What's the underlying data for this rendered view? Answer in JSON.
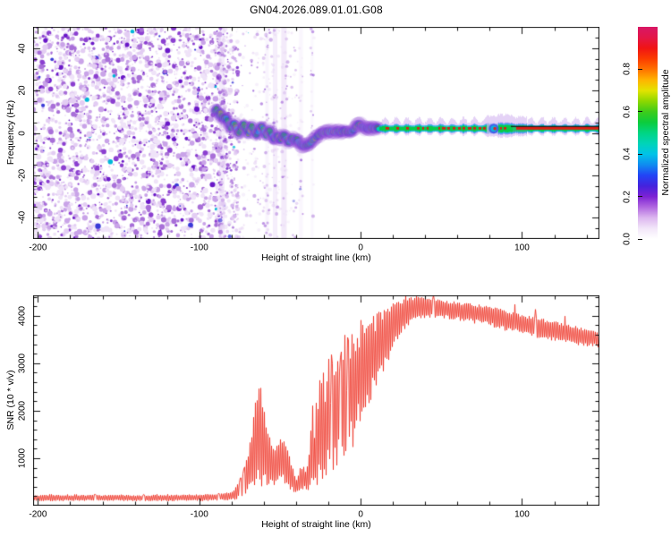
{
  "title": "GN04.2026.089.01.01.G08",
  "chart_data": [
    {
      "type": "heatmap",
      "name": "doppler-spectrogram",
      "xlabel": "Height of straight line (km)",
      "ylabel": "Frequency (Hz)",
      "xlim": [
        -203,
        148
      ],
      "ylim": [
        -50,
        50
      ],
      "x_major_ticks": [
        -200,
        -100,
        0,
        100
      ],
      "x_minor_step": 20,
      "y_major_ticks": [
        -40,
        -20,
        0,
        20,
        40
      ],
      "y_minor_step": 5,
      "grid": false,
      "colorbar": {
        "label": "Normalized spectral amplitude",
        "ticks": [
          0.0,
          0.2,
          0.4,
          0.6,
          0.8
        ],
        "range": [
          0,
          1
        ],
        "stops": [
          [
            0,
            "#ffffff"
          ],
          [
            0.05,
            "#f2e6f9"
          ],
          [
            0.1,
            "#dcb6ef"
          ],
          [
            0.15,
            "#b168e0"
          ],
          [
            0.2,
            "#7d22d4"
          ],
          [
            0.25,
            "#4422dd"
          ],
          [
            0.3,
            "#2244f5"
          ],
          [
            0.35,
            "#0f8cf0"
          ],
          [
            0.4,
            "#00c3e8"
          ],
          [
            0.45,
            "#00d4b8"
          ],
          [
            0.5,
            "#00d583"
          ],
          [
            0.55,
            "#0ccc3c"
          ],
          [
            0.6,
            "#3ecc1a"
          ],
          [
            0.65,
            "#8ed800"
          ],
          [
            0.7,
            "#e3e300"
          ],
          [
            0.75,
            "#ffb300"
          ],
          [
            0.8,
            "#ff7100"
          ],
          [
            0.85,
            "#fb3c00"
          ],
          [
            0.9,
            "#f01414"
          ],
          [
            0.95,
            "#e31648"
          ],
          [
            1,
            "#d81765"
          ]
        ]
      },
      "noise_region": {
        "x_start_km": -203,
        "x_end_km": -86,
        "fade_end_km": -38
      },
      "vertical_streaks_km": [
        -86,
        -58,
        -53,
        -47.5,
        -37,
        -30
      ],
      "signal_trace": [
        [
          -90.5,
          10.5
        ],
        [
          -89.5,
          11.5
        ],
        [
          -88.5,
          9.6
        ],
        [
          -87.5,
          8.2
        ],
        [
          -86.5,
          9.2
        ],
        [
          -85.5,
          7.4
        ],
        [
          -84.5,
          6.2
        ],
        [
          -83.5,
          7.4
        ],
        [
          -82.5,
          5.4
        ],
        [
          -81.5,
          3.8
        ],
        [
          -80.5,
          2.2
        ],
        [
          -79.5,
          3.4
        ],
        [
          -78.5,
          4.8
        ],
        [
          -77.5,
          3.2
        ],
        [
          -76.5,
          1.4
        ],
        [
          -75.5,
          -0.4
        ],
        [
          -74.5,
          1.2
        ],
        [
          -73.5,
          2.8
        ],
        [
          -72.5,
          4.4
        ],
        [
          -71.5,
          3
        ],
        [
          -70.5,
          1.2
        ],
        [
          -69.5,
          -0.4
        ],
        [
          -68.5,
          1.6
        ],
        [
          -67.5,
          3.6
        ],
        [
          -66.5,
          2
        ],
        [
          -65.5,
          0.2
        ],
        [
          -64.5,
          -1.4
        ],
        [
          -63.5,
          0.4
        ],
        [
          -62.5,
          2
        ],
        [
          -61.5,
          3.4
        ],
        [
          -60.5,
          1.8
        ],
        [
          -59.5,
          0.2
        ],
        [
          -58.5,
          -1.4
        ],
        [
          -57.5,
          0
        ],
        [
          -56.5,
          1.2
        ],
        [
          -55.5,
          -0.4
        ],
        [
          -54.5,
          -2
        ],
        [
          -53.5,
          -3.6
        ],
        [
          -52.5,
          -2.2
        ],
        [
          -51.5,
          -0.8
        ],
        [
          -50.5,
          -2
        ],
        [
          -49.5,
          -3.4
        ],
        [
          -48.5,
          -2
        ],
        [
          -47.5,
          -0.6
        ],
        [
          -46.5,
          -1.8
        ],
        [
          -45.5,
          -3.2
        ],
        [
          -44.5,
          -4.6
        ],
        [
          -43.5,
          -3.4
        ],
        [
          -42.5,
          -2.2
        ],
        [
          -41.5,
          -3
        ],
        [
          -40.5,
          -4.2
        ],
        [
          -39.5,
          -3
        ],
        [
          -38.5,
          -4
        ],
        [
          -37.5,
          -5
        ],
        [
          -36.5,
          -5.6
        ],
        [
          -35.5,
          -6
        ],
        [
          -34.5,
          -6.2
        ],
        [
          -33.5,
          -5.8
        ],
        [
          -32.5,
          -5.3
        ],
        [
          -31.5,
          -4.7
        ],
        [
          -30.5,
          -4.1
        ],
        [
          -29.5,
          -3.3
        ],
        [
          -28.5,
          -2.5
        ],
        [
          -27.5,
          -1.8
        ],
        [
          -26.5,
          -1.2
        ],
        [
          -25.5,
          -0.7
        ],
        [
          -24.5,
          -0.2
        ],
        [
          -23.5,
          0.2
        ],
        [
          -22.5,
          0.5
        ],
        [
          -21.5,
          0.6
        ],
        [
          -20.5,
          0.5
        ],
        [
          -19.5,
          0.6
        ],
        [
          -18.5,
          0.5
        ],
        [
          -17.5,
          0.6
        ],
        [
          -16.5,
          0.7
        ],
        [
          -15.5,
          0.6
        ],
        [
          -14.5,
          0.6
        ],
        [
          -13.5,
          0.7
        ],
        [
          -12.5,
          0.6
        ],
        [
          -11.5,
          0.7
        ],
        [
          -10.5,
          0.6
        ],
        [
          -9.5,
          0.7
        ],
        [
          -8.5,
          0.6
        ],
        [
          -7.5,
          0.7
        ],
        [
          -6.5,
          0.6
        ],
        [
          -5.5,
          0.8
        ],
        [
          -4.5,
          1.2
        ],
        [
          -3.5,
          2.2
        ],
        [
          -2.5,
          3.4
        ],
        [
          -1.5,
          4
        ],
        [
          -0.5,
          3.8
        ],
        [
          0.5,
          3.2
        ],
        [
          1.5,
          2.6
        ],
        [
          2.5,
          2.3
        ],
        [
          3.5,
          2.6
        ],
        [
          4.5,
          2.2
        ],
        [
          5.5,
          2.5
        ],
        [
          6.5,
          2.1
        ],
        [
          7.5,
          2.4
        ],
        [
          8.5,
          2.1
        ],
        [
          9.5,
          2.3
        ],
        [
          10.5,
          2.1
        ],
        [
          11.5,
          2.1
        ]
      ],
      "trace_red_segments": [
        [
          -63.5,
          -61.5
        ],
        [
          -50.5,
          -49
        ],
        [
          -17.5,
          -13
        ],
        [
          -11,
          -5.5
        ],
        [
          -1.5,
          11
        ]
      ],
      "band": {
        "x_range": [
          11.5,
          148
        ],
        "hz": 2.05,
        "red_segments": [
          [
            -1.5,
            11
          ],
          [
            14,
            18
          ],
          [
            21,
            24
          ],
          [
            27,
            30
          ],
          [
            34,
            42
          ],
          [
            48,
            78
          ],
          [
            82,
            84
          ],
          [
            86,
            90
          ],
          [
            96,
            148
          ]
        ],
        "pinch_km": [
          78,
          85
        ],
        "bulge_km": [
          85,
          94
        ],
        "swell_km": [
          94,
          103
        ]
      },
      "black_line": {
        "x_range": [
          93,
          148
        ],
        "hz": 3.3
      }
    },
    {
      "type": "line",
      "name": "snr-profile",
      "xlabel": "Height of straight line (km)",
      "ylabel": "SNR (10 * v/v)",
      "xlim": [
        -203,
        148
      ],
      "ylim": [
        0,
        4430
      ],
      "x_major_ticks": [
        -200,
        -100,
        0,
        100
      ],
      "x_minor_step": 20,
      "y_major_ticks": [
        1000,
        2000,
        3000,
        4000
      ],
      "y_minor_step": 200,
      "grid": false,
      "line_color": "#ee3326",
      "envelope_km_lo_hi": [
        [
          -200,
          95,
          225
        ],
        [
          -190,
          95,
          230
        ],
        [
          -180,
          95,
          225
        ],
        [
          -170,
          100,
          230
        ],
        [
          -160,
          95,
          225
        ],
        [
          -150,
          100,
          235
        ],
        [
          -140,
          95,
          225
        ],
        [
          -130,
          100,
          230
        ],
        [
          -120,
          95,
          230
        ],
        [
          -110,
          100,
          235
        ],
        [
          -100,
          100,
          240
        ],
        [
          -95,
          100,
          245
        ],
        [
          -90,
          105,
          250
        ],
        [
          -85,
          110,
          260
        ],
        [
          -82,
          115,
          280
        ],
        [
          -79,
          120,
          330
        ],
        [
          -76,
          140,
          480
        ],
        [
          -73,
          170,
          700
        ],
        [
          -70,
          220,
          1100
        ],
        [
          -68,
          260,
          1600
        ],
        [
          -66,
          300,
          2100
        ],
        [
          -64,
          330,
          2450
        ],
        [
          -62,
          330,
          2500
        ],
        [
          -60,
          310,
          2150
        ],
        [
          -58,
          330,
          1750
        ],
        [
          -56,
          380,
          1450
        ],
        [
          -54,
          420,
          1250
        ],
        [
          -52,
          460,
          1400
        ],
        [
          -50,
          500,
          1500
        ],
        [
          -48,
          480,
          1400
        ],
        [
          -46,
          420,
          1250
        ],
        [
          -44,
          340,
          1000
        ],
        [
          -42,
          280,
          720
        ],
        [
          -40,
          255,
          540
        ],
        [
          -38,
          280,
          780
        ],
        [
          -36,
          320,
          900
        ],
        [
          -34,
          300,
          740
        ],
        [
          -32,
          340,
          1250
        ],
        [
          -30,
          420,
          2350
        ],
        [
          -29,
          480,
          1500
        ],
        [
          -28,
          430,
          2550
        ],
        [
          -27,
          400,
          1800
        ],
        [
          -26,
          480,
          2750
        ],
        [
          -25,
          560,
          3300
        ],
        [
          -24,
          480,
          2050
        ],
        [
          -23,
          640,
          3400
        ],
        [
          -22,
          560,
          2250
        ],
        [
          -21,
          720,
          3050
        ],
        [
          -20,
          640,
          3500
        ],
        [
          -19,
          560,
          2050
        ],
        [
          -18,
          720,
          3600
        ],
        [
          -17,
          640,
          2450
        ],
        [
          -16,
          820,
          3700
        ],
        [
          -15,
          740,
          2650
        ],
        [
          -14,
          900,
          3800
        ],
        [
          -13,
          820,
          2850
        ],
        [
          -12,
          1000,
          3650
        ],
        [
          -11,
          900,
          3050
        ],
        [
          -10,
          1100,
          3900
        ],
        [
          -9,
          760,
          2650
        ],
        [
          -8,
          1250,
          3850
        ],
        [
          -7,
          950,
          3050
        ],
        [
          -6,
          1450,
          3900
        ],
        [
          -5,
          1150,
          3250
        ],
        [
          -4,
          1650,
          3950
        ],
        [
          -3,
          1350,
          3450
        ],
        [
          -2,
          1850,
          3900
        ],
        [
          -1,
          1550,
          3550
        ],
        [
          0,
          2050,
          3980
        ],
        [
          1,
          1750,
          3650
        ],
        [
          2,
          1900,
          3800
        ],
        [
          3,
          2100,
          3950
        ],
        [
          4,
          2250,
          4050
        ],
        [
          5,
          1950,
          3850
        ],
        [
          6,
          2100,
          3900
        ],
        [
          7,
          2350,
          4050
        ],
        [
          8,
          2500,
          4100
        ],
        [
          9,
          2250,
          3950
        ],
        [
          10,
          2400,
          4050
        ],
        [
          11,
          2650,
          4150
        ],
        [
          12,
          2800,
          4180
        ],
        [
          13,
          2600,
          4050
        ],
        [
          14,
          2750,
          4100
        ],
        [
          15,
          2950,
          4200
        ],
        [
          16,
          3050,
          4220
        ],
        [
          17,
          2900,
          4100
        ],
        [
          18,
          3150,
          4250
        ],
        [
          19,
          3250,
          4280
        ],
        [
          20,
          3300,
          4280
        ],
        [
          22,
          3450,
          4300
        ],
        [
          25,
          3600,
          4330
        ],
        [
          28,
          3750,
          4380
        ],
        [
          30,
          3820,
          4400
        ],
        [
          35,
          3880,
          4420
        ],
        [
          40,
          3920,
          4420
        ],
        [
          45,
          3950,
          4360
        ],
        [
          50,
          3940,
          4340
        ],
        [
          55,
          3920,
          4320
        ],
        [
          60,
          3900,
          4300
        ],
        [
          65,
          3870,
          4280
        ],
        [
          70,
          3840,
          4260
        ],
        [
          75,
          3810,
          4230
        ],
        [
          80,
          3770,
          4200
        ],
        [
          85,
          3730,
          4160
        ],
        [
          90,
          3680,
          4120
        ],
        [
          95,
          3640,
          4080
        ],
        [
          100,
          3610,
          4040
        ],
        [
          105,
          3570,
          4000
        ],
        [
          110,
          3530,
          3960
        ],
        [
          115,
          3500,
          3920
        ],
        [
          120,
          3470,
          3890
        ],
        [
          125,
          3440,
          3850
        ],
        [
          130,
          3410,
          3810
        ],
        [
          135,
          3380,
          3770
        ],
        [
          140,
          3360,
          3730
        ],
        [
          145,
          3340,
          3690
        ],
        [
          148,
          3320,
          3660
        ]
      ]
    }
  ]
}
